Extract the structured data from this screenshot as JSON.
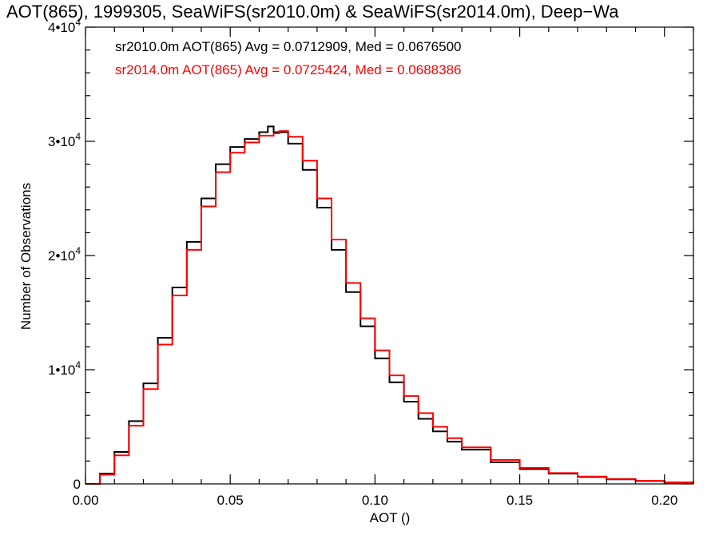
{
  "chart_data": {
    "type": "line",
    "title": "AOT(865), 1999305, SeaWiFS(sr2010.0m) & SeaWiFS(sr2014.0m), Deep−Wa",
    "xlabel": "AOT ()",
    "ylabel": "Number of Observations",
    "xlim": [
      0.0,
      0.21
    ],
    "ylim": [
      0,
      40000
    ],
    "x_ticks": [
      {
        "value": 0.0,
        "label": "0.00"
      },
      {
        "value": 0.05,
        "label": "0.05"
      },
      {
        "value": 0.1,
        "label": "0.10"
      },
      {
        "value": 0.15,
        "label": "0.15"
      },
      {
        "value": 0.2,
        "label": "0.20"
      }
    ],
    "y_ticks": [
      {
        "value": 0,
        "base": "0",
        "exp": ""
      },
      {
        "value": 10000,
        "base": "1•10",
        "exp": "4"
      },
      {
        "value": 20000,
        "base": "2•10",
        "exp": "4"
      },
      {
        "value": 30000,
        "base": "3•10",
        "exp": "4"
      },
      {
        "value": 40000,
        "base": "4•10",
        "exp": "4"
      }
    ],
    "grid": false,
    "series": [
      {
        "name": "sr2010.0m",
        "color": "#000000",
        "annotation": "sr2010.0m AOT(865) Avg = 0.0712909, Med = 0.0676500",
        "x": [
          0.0,
          0.005,
          0.01,
          0.015,
          0.02,
          0.025,
          0.03,
          0.035,
          0.04,
          0.045,
          0.05,
          0.055,
          0.06,
          0.063,
          0.065,
          0.07,
          0.075,
          0.08,
          0.085,
          0.09,
          0.095,
          0.1,
          0.105,
          0.11,
          0.115,
          0.12,
          0.125,
          0.13,
          0.14,
          0.15,
          0.16,
          0.17,
          0.18,
          0.19,
          0.2,
          0.21
        ],
        "y": [
          0,
          900,
          2800,
          5500,
          8800,
          12800,
          17200,
          21200,
          25000,
          28000,
          29500,
          30200,
          30800,
          31300,
          30800,
          29800,
          27500,
          24200,
          20500,
          16800,
          13800,
          11000,
          8900,
          7200,
          5700,
          4600,
          3700,
          3000,
          1900,
          1300,
          900,
          600,
          400,
          250,
          120,
          50
        ]
      },
      {
        "name": "sr2014.0m",
        "color": "#ff0000",
        "annotation": "sr2014.0m AOT(865) Avg = 0.0725424, Med = 0.0688386",
        "x": [
          0.0,
          0.005,
          0.01,
          0.015,
          0.02,
          0.025,
          0.03,
          0.035,
          0.04,
          0.045,
          0.05,
          0.055,
          0.06,
          0.065,
          0.067,
          0.07,
          0.075,
          0.08,
          0.085,
          0.09,
          0.095,
          0.1,
          0.105,
          0.11,
          0.115,
          0.12,
          0.125,
          0.13,
          0.14,
          0.15,
          0.16,
          0.17,
          0.18,
          0.19,
          0.2,
          0.21
        ],
        "y": [
          0,
          800,
          2500,
          5100,
          8300,
          12200,
          16500,
          20500,
          24300,
          27300,
          29000,
          29900,
          30500,
          30700,
          30900,
          30400,
          28300,
          25000,
          21400,
          17600,
          14500,
          11700,
          9500,
          7700,
          6200,
          5000,
          4000,
          3200,
          2100,
          1400,
          950,
          650,
          430,
          270,
          130,
          60
        ]
      }
    ]
  }
}
